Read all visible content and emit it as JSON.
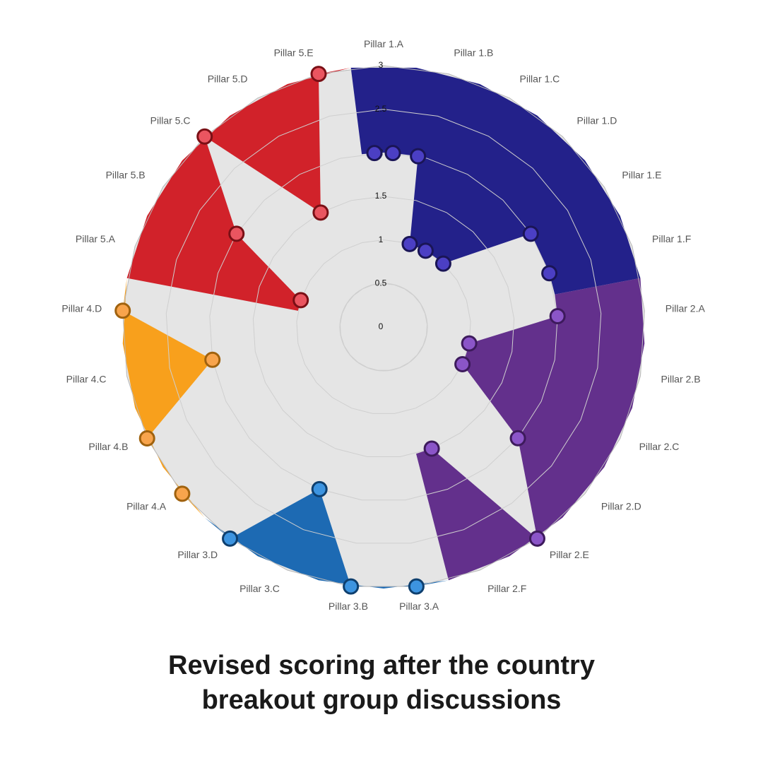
{
  "chart_data": {
    "type": "radar",
    "title_lines": [
      "Revised scoring after the country",
      "breakout group discussions"
    ],
    "radial_range": [
      0,
      3
    ],
    "radial_ticks": [
      "0",
      "0.5",
      "1",
      "1.5",
      "2",
      "2.5",
      "3"
    ],
    "grid": true,
    "background_color": "#e5e5e5",
    "axes": [
      "Pillar 1.A",
      "Pillar 1.B",
      "Pillar 1.C",
      "Pillar 1.D",
      "Pillar 1.E",
      "Pillar 1.F",
      "Pillar 2.A",
      "Pillar 2.B",
      "Pillar 2.C",
      "Pillar 2.D",
      "Pillar 2.E",
      "Pillar 2.F",
      "Pillar 3.A",
      "Pillar 3.B",
      "Pillar 3.C",
      "Pillar 3.D",
      "Pillar 4.A",
      "Pillar 4.B",
      "Pillar 4.C",
      "Pillar 4.D",
      "Pillar 5.A",
      "Pillar 5.B",
      "Pillar 5.C",
      "Pillar 5.D",
      "Pillar 5.E"
    ],
    "groups": [
      {
        "pillar": "Pillar 1",
        "fill": "#23218a",
        "marker_fill": "#4b3fc4",
        "marker_stroke": "#1a1556",
        "points": [
          {
            "axis": "Pillar 1.A",
            "value": 2.0
          },
          {
            "axis": "Pillar 1.A",
            "value": 2.0
          },
          {
            "axis": "Pillar 1.B",
            "value": 2.0
          },
          {
            "axis": "Pillar 1.B",
            "value": 1.0
          },
          {
            "axis": "Pillar 1.C",
            "value": 1.0
          },
          {
            "axis": "Pillar 1.D",
            "value": 1.0
          },
          {
            "axis": "Pillar 1.E",
            "value": 2.0
          },
          {
            "axis": "Pillar 1.F",
            "value": 2.0
          }
        ]
      },
      {
        "pillar": "Pillar 2",
        "fill": "#63308c",
        "marker_fill": "#8b55c8",
        "marker_stroke": "#3d1a5c",
        "points": [
          {
            "axis": "Pillar 2.A",
            "value": 2.0
          },
          {
            "axis": "Pillar 2.B",
            "value": 1.0
          },
          {
            "axis": "Pillar 2.C",
            "value": 1.0
          },
          {
            "axis": "Pillar 2.D",
            "value": 2.0
          },
          {
            "axis": "Pillar 2.E",
            "value": 3.0
          },
          {
            "axis": "Pillar 2.F",
            "value": 1.5
          }
        ]
      },
      {
        "pillar": "Pillar 3",
        "fill": "#1d6ab3",
        "marker_fill": "#3d94e0",
        "marker_stroke": "#0e3f6e",
        "points": [
          {
            "axis": "Pillar 3.A",
            "value": 3.0
          },
          {
            "axis": "Pillar 3.B",
            "value": 3.0
          },
          {
            "axis": "Pillar 3.C",
            "value": 2.0
          },
          {
            "axis": "Pillar 3.D",
            "value": 3.0
          }
        ]
      },
      {
        "pillar": "Pillar 4",
        "fill": "#f8a01c",
        "marker_fill": "#f8a44c",
        "marker_stroke": "#a0620e",
        "points": [
          {
            "axis": "Pillar 4.A",
            "value": 3.0
          },
          {
            "axis": "Pillar 4.B",
            "value": 3.0
          },
          {
            "axis": "Pillar 4.C",
            "value": 2.0
          },
          {
            "axis": "Pillar 4.D",
            "value": 3.0
          }
        ]
      },
      {
        "pillar": "Pillar 5",
        "fill": "#d1222a",
        "marker_fill": "#ea5560",
        "marker_stroke": "#7a0f15",
        "points": [
          {
            "axis": "Pillar 5.A",
            "value": 1.0
          },
          {
            "axis": "Pillar 5.B",
            "value": 2.0
          },
          {
            "axis": "Pillar 5.C",
            "value": 3.0
          },
          {
            "axis": "Pillar 5.D",
            "value": 1.5
          },
          {
            "axis": "Pillar 5.E",
            "value": 3.0
          }
        ]
      }
    ]
  }
}
